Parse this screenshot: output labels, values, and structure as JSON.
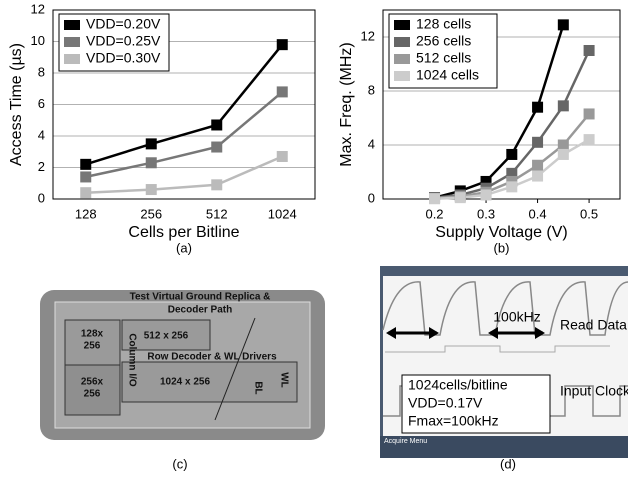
{
  "chart_data": [
    {
      "type": "line",
      "categories": [
        "128",
        "256",
        "512",
        "1024"
      ],
      "series": [
        {
          "name": "VDD=0.20V",
          "color": "#000000",
          "values": [
            2.2,
            3.5,
            4.7,
            9.8
          ]
        },
        {
          "name": "VDD=0.25V",
          "color": "#777777",
          "values": [
            1.4,
            2.3,
            3.3,
            6.8
          ]
        },
        {
          "name": "VDD=0.30V",
          "color": "#bbbbbb",
          "values": [
            0.4,
            0.6,
            0.9,
            2.7
          ]
        }
      ],
      "ylim": [
        0,
        12
      ],
      "yticks": [
        0,
        2,
        4,
        6,
        8,
        10,
        12
      ],
      "grid": true,
      "legend": "upper left",
      "xlabel": "Cells per Bitline",
      "ylabel": "Access Time (µs)",
      "caption": "(a)"
    },
    {
      "type": "line",
      "x": [
        0.2,
        0.25,
        0.3,
        0.35,
        0.4,
        0.45,
        0.5
      ],
      "series": [
        {
          "name": "128 cells",
          "color": "#000000",
          "values": [
            0.1,
            0.6,
            1.3,
            3.3,
            6.8,
            12.9,
            null
          ]
        },
        {
          "name": "256 cells",
          "color": "#666666",
          "values": [
            0.1,
            0.3,
            0.8,
            1.9,
            4.2,
            6.9,
            11.0
          ]
        },
        {
          "name": "512 cells",
          "color": "#999999",
          "values": [
            0.05,
            0.2,
            0.5,
            1.3,
            2.5,
            4.0,
            6.3
          ]
        },
        {
          "name": "1024 cells",
          "color": "#cccccc",
          "values": [
            0.02,
            0.1,
            0.3,
            0.9,
            1.7,
            3.3,
            4.4
          ]
        }
      ],
      "xlim": [
        0.1,
        0.56
      ],
      "xticks": [
        0.2,
        0.3,
        0.4,
        0.5
      ],
      "ylim": [
        0,
        14
      ],
      "yticks": [
        0,
        4,
        8,
        12
      ],
      "grid": true,
      "legend": "upper left",
      "xlabel": "Supply Voltage (V)",
      "ylabel": "Max. Freq. (MHz)",
      "caption": "(b)"
    }
  ],
  "panels": {
    "c": {
      "labels": [
        "Test Virtual Ground Replica &",
        "Decoder Path",
        "128x",
        "256",
        "512 x 256",
        "Column I/O",
        "Row Decoder & WL Drivers",
        "256x",
        "256",
        "1024 x 256",
        "BL",
        "WL"
      ],
      "caption": "(c)"
    },
    "d": {
      "freq": "100kHz",
      "read": "Read Data",
      "clock": "Input Clock",
      "info": [
        "1024cells/bitline",
        "VDD=0.17V",
        "Fmax=100kHz"
      ],
      "menu": "Acquire Menu",
      "caption": "(d)"
    }
  }
}
